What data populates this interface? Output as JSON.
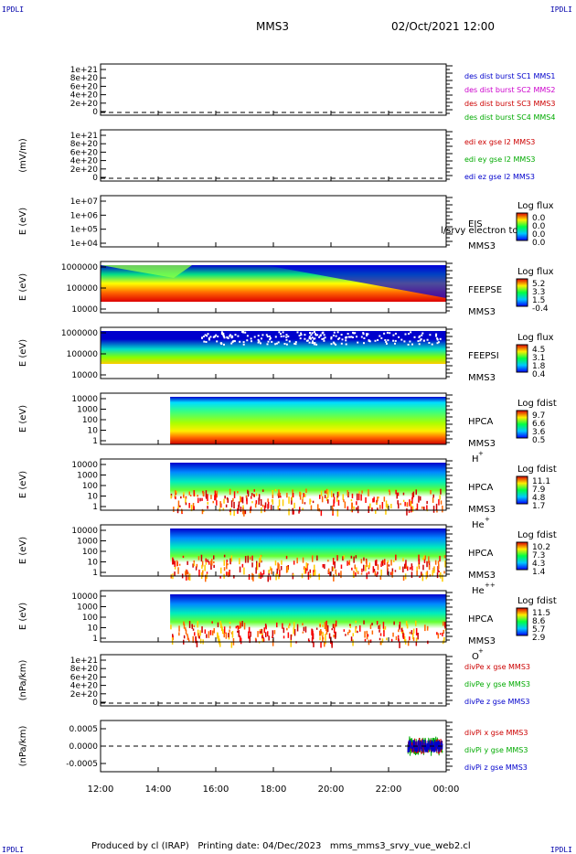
{
  "header": {
    "corner_label": "IPDLI",
    "spacecraft": "MMS3",
    "datetime": "02/Oct/2021 12:00"
  },
  "footer": {
    "text": "Produced by cl (IRAP)   Printing date: 04/Dec/2023   mms_mms3_srvy_vue_web2.cl"
  },
  "chart_data": [
    {
      "type": "line",
      "ylabel": "",
      "yticks": [
        "1e+21",
        "8e+20",
        "6e+20",
        "4e+20",
        "2e+20",
        "0"
      ],
      "series": [
        {
          "name": "des dist burst SC1 MMS1",
          "color": "#0000cc",
          "values": []
        },
        {
          "name": "des dist burst SC2 MMS2",
          "color": "#cc00cc",
          "values": []
        },
        {
          "name": "des dist burst SC3 MMS3",
          "color": "#cc0000",
          "values": []
        },
        {
          "name": "des dist burst SC4 MMS4",
          "color": "#00aa00",
          "values": []
        }
      ]
    },
    {
      "type": "line",
      "ylabel": "(mV/m)",
      "yticks": [
        "1e+21",
        "8e+20",
        "6e+20",
        "4e+20",
        "2e+20",
        "0"
      ],
      "series": [
        {
          "name": "edi ex gse l2 MMS3",
          "color": "#cc0000",
          "values": []
        },
        {
          "name": "edi ey gse l2 MMS3",
          "color": "#00aa00",
          "values": []
        },
        {
          "name": "edi ez gse l2 MMS3",
          "color": "#0000cc",
          "values": []
        }
      ]
    },
    {
      "type": "heatmap",
      "ylabel": "E (eV)",
      "yticks": [
        "1e+07",
        "1e+06",
        "1e+05",
        "1e+04"
      ],
      "instrument": [
        "EIS",
        "MMS3"
      ],
      "overlay_label": "l/srvy electron to",
      "colorbar": {
        "title": "Log flux",
        "ticks": [
          "0.0",
          "0.0",
          "0.0",
          "0.0"
        ]
      }
    },
    {
      "type": "heatmap",
      "ylabel": "E (eV)",
      "yticks": [
        "1000000",
        "100000",
        "10000"
      ],
      "instrument": [
        "FEEPSE",
        "MMS3"
      ],
      "colorbar": {
        "title": "Log flux",
        "ticks": [
          "5.2",
          "3.3",
          "1.5",
          "-0.4"
        ]
      }
    },
    {
      "type": "heatmap",
      "ylabel": "E (eV)",
      "yticks": [
        "1000000",
        "100000",
        "10000"
      ],
      "instrument": [
        "FEEPSI",
        "MMS3"
      ],
      "colorbar": {
        "title": "Log flux",
        "ticks": [
          "4.5",
          "3.1",
          "1.8",
          "0.4"
        ]
      }
    },
    {
      "type": "heatmap",
      "ylabel": "E (eV)",
      "yticks": [
        "10000",
        "1000",
        "100",
        "10",
        "1"
      ],
      "instrument": [
        "HPCA",
        "MMS3"
      ],
      "species": "H",
      "charge": "+",
      "colorbar": {
        "title": "Log fdist",
        "ticks": [
          "9.7",
          "6.6",
          "3.6",
          "0.5"
        ]
      }
    },
    {
      "type": "heatmap",
      "ylabel": "E (eV)",
      "yticks": [
        "10000",
        "1000",
        "100",
        "10",
        "1"
      ],
      "instrument": [
        "HPCA",
        "MMS3"
      ],
      "species": "He",
      "charge": "+",
      "colorbar": {
        "title": "Log fdist",
        "ticks": [
          "11.1",
          "7.9",
          "4.8",
          "1.7"
        ]
      }
    },
    {
      "type": "heatmap",
      "ylabel": "E (eV)",
      "yticks": [
        "10000",
        "1000",
        "100",
        "10",
        "1"
      ],
      "instrument": [
        "HPCA",
        "MMS3"
      ],
      "species": "He",
      "charge": "++",
      "colorbar": {
        "title": "Log fdist",
        "ticks": [
          "10.2",
          "7.3",
          "4.3",
          "1.4"
        ]
      }
    },
    {
      "type": "heatmap",
      "ylabel": "E (eV)",
      "yticks": [
        "10000",
        "1000",
        "100",
        "10",
        "1"
      ],
      "instrument": [
        "HPCA",
        "MMS3"
      ],
      "species": "O",
      "charge": "+",
      "colorbar": {
        "title": "Log fdist",
        "ticks": [
          "11.5",
          "8.6",
          "5.7",
          "2.9"
        ]
      }
    },
    {
      "type": "line",
      "ylabel": "(nPa/km)",
      "yticks": [
        "1e+21",
        "8e+20",
        "6e+20",
        "4e+20",
        "2e+20",
        "0"
      ],
      "series": [
        {
          "name": "divPe x gse MMS3",
          "color": "#cc0000",
          "values": []
        },
        {
          "name": "divPe y gse MMS3",
          "color": "#00aa00",
          "values": []
        },
        {
          "name": "divPe z gse MMS3",
          "color": "#0000cc",
          "values": []
        }
      ]
    },
    {
      "type": "line",
      "ylabel": "(nPa/km)",
      "yticks": [
        "0.0005",
        "0.0000",
        "-0.0005"
      ],
      "ylim": [
        -0.00075,
        0.00075
      ],
      "series": [
        {
          "name": "divPi x gse MMS3",
          "color": "#cc0000",
          "values": []
        },
        {
          "name": "divPi y gse MMS3",
          "color": "#00aa00",
          "values": []
        },
        {
          "name": "divPi z gse MMS3",
          "color": "#0000cc",
          "values": []
        }
      ]
    }
  ],
  "time_axis": {
    "ticks": [
      "12:00",
      "14:00",
      "16:00",
      "18:00",
      "20:00",
      "22:00",
      "00:00"
    ],
    "hpca_start": "14:25",
    "divpi_start": "22:40"
  }
}
